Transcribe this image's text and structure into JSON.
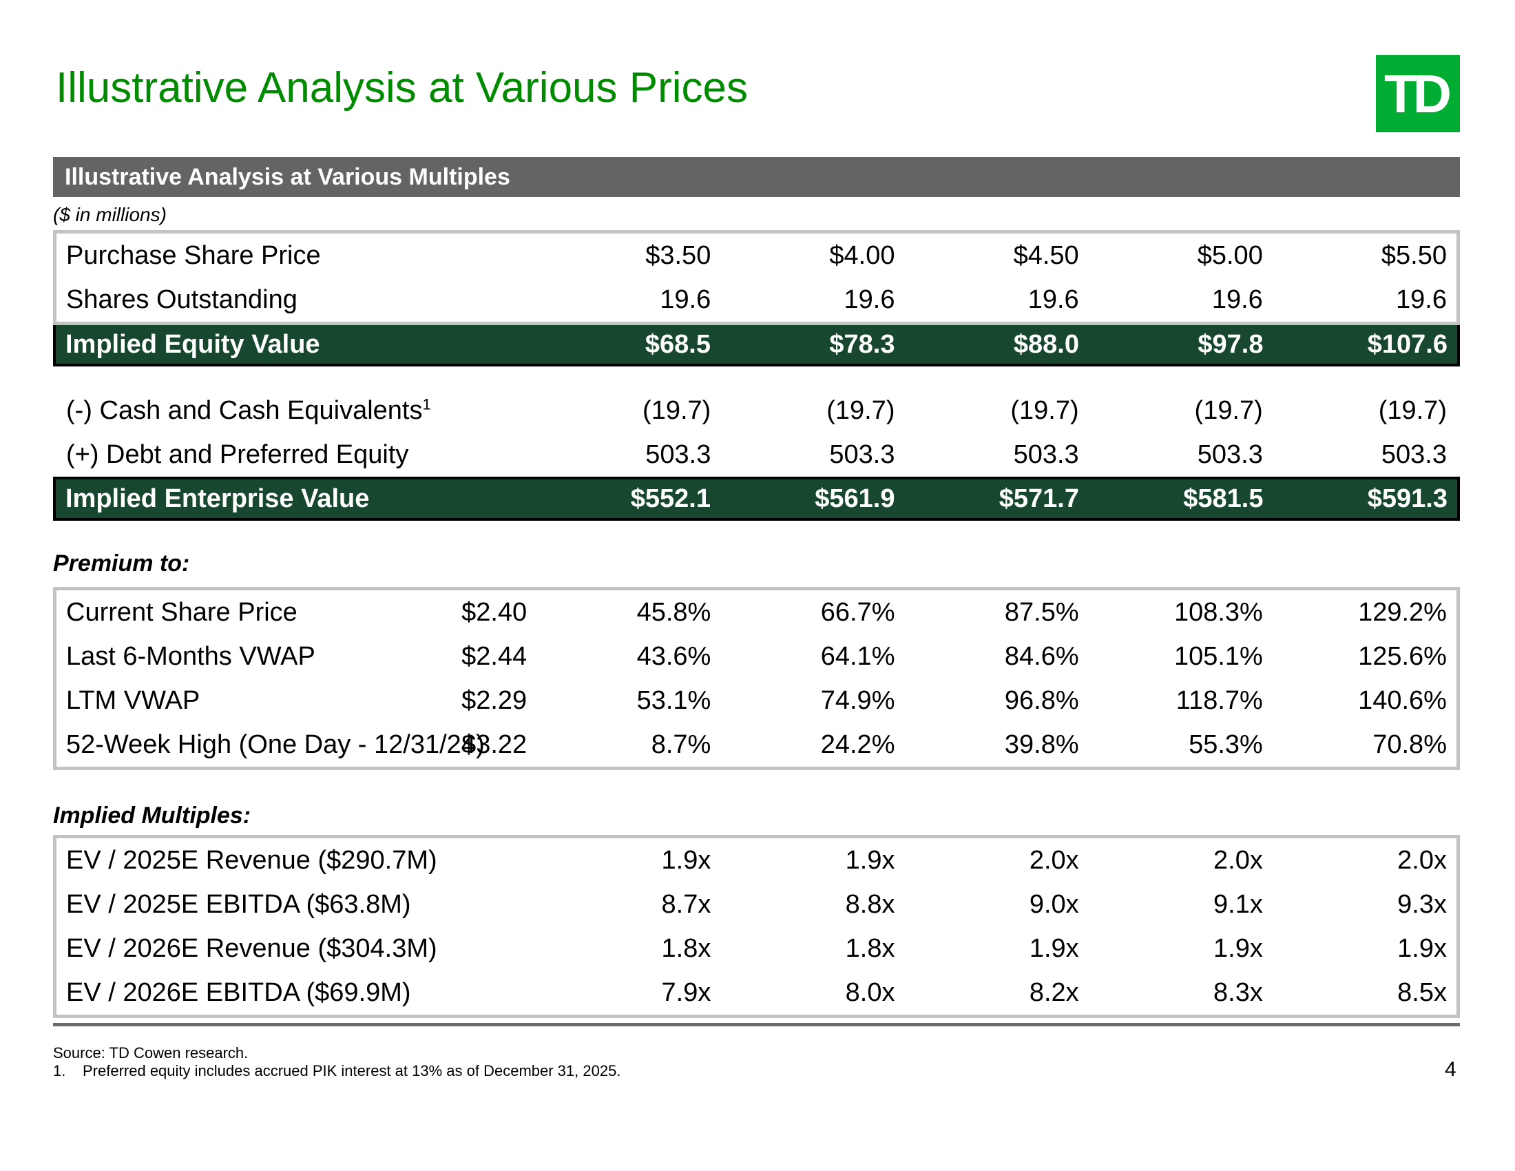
{
  "slide": {
    "title": "Illustrative Analysis at Various Prices",
    "logo_text": "TD",
    "section_header": "Illustrative Analysis at Various Multiples",
    "units_note": "($ in millions)",
    "page_number": "4",
    "colors": {
      "title_green": "#008A00",
      "logo_green": "#00AC32",
      "section_bar_gray": "#646464",
      "total_row_dark_green": "#18472F",
      "table_border_gray": "#C3C3C3",
      "footer_rule_gray": "#6A6A6A"
    }
  },
  "price_table": {
    "rows": [
      {
        "label": "Purchase Share Price",
        "values": [
          "$3.50",
          "$4.00",
          "$4.50",
          "$5.00",
          "$5.50"
        ]
      },
      {
        "label": "Shares Outstanding",
        "values": [
          "19.6",
          "19.6",
          "19.6",
          "19.6",
          "19.6"
        ]
      }
    ],
    "equity_row": {
      "label": "Implied Equity Value",
      "values": [
        "$68.5",
        "$78.3",
        "$88.0",
        "$97.8",
        "$107.6"
      ]
    },
    "adjustment_rows": [
      {
        "label": "(-) Cash and Cash Equivalents",
        "superscript": "1",
        "values": [
          "(19.7)",
          "(19.7)",
          "(19.7)",
          "(19.7)",
          "(19.7)"
        ]
      },
      {
        "label": "(+) Debt and Preferred Equity",
        "values": [
          "503.3",
          "503.3",
          "503.3",
          "503.3",
          "503.3"
        ]
      }
    ],
    "enterprise_row": {
      "label": "Implied Enterprise Value",
      "values": [
        "$552.1",
        "$561.9",
        "$571.7",
        "$581.5",
        "$591.3"
      ]
    }
  },
  "premium_section": {
    "heading": "Premium to:",
    "rows": [
      {
        "label": "Current Share Price",
        "ref": "$2.40",
        "values": [
          "45.8%",
          "66.7%",
          "87.5%",
          "108.3%",
          "129.2%"
        ]
      },
      {
        "label": "Last 6-Months VWAP",
        "ref": "$2.44",
        "values": [
          "43.6%",
          "64.1%",
          "84.6%",
          "105.1%",
          "125.6%"
        ]
      },
      {
        "label": "LTM VWAP",
        "ref": "$2.29",
        "values": [
          "53.1%",
          "74.9%",
          "96.8%",
          "118.7%",
          "140.6%"
        ]
      },
      {
        "label": "52-Week High (One Day - 12/31/24)",
        "ref": "$3.22",
        "values": [
          "8.7%",
          "24.2%",
          "39.8%",
          "55.3%",
          "70.8%"
        ]
      }
    ]
  },
  "multiples_section": {
    "heading": "Implied Multiples:",
    "rows": [
      {
        "label": "EV / 2025E Revenue ($290.7M)",
        "values": [
          "1.9x",
          "1.9x",
          "2.0x",
          "2.0x",
          "2.0x"
        ]
      },
      {
        "label": "EV / 2025E EBITDA ($63.8M)",
        "values": [
          "8.7x",
          "8.8x",
          "9.0x",
          "9.1x",
          "9.3x"
        ]
      },
      {
        "label": "EV / 2026E Revenue ($304.3M)",
        "values": [
          "1.8x",
          "1.8x",
          "1.9x",
          "1.9x",
          "1.9x"
        ]
      },
      {
        "label": "EV / 2026E EBITDA ($69.9M)",
        "values": [
          "7.9x",
          "8.0x",
          "8.2x",
          "8.3x",
          "8.5x"
        ]
      }
    ]
  },
  "footer": {
    "source": "Source: TD Cowen research.",
    "note_number": "1.",
    "note_text": "Preferred equity includes accrued PIK interest at 13% as of December 31, 2025."
  }
}
